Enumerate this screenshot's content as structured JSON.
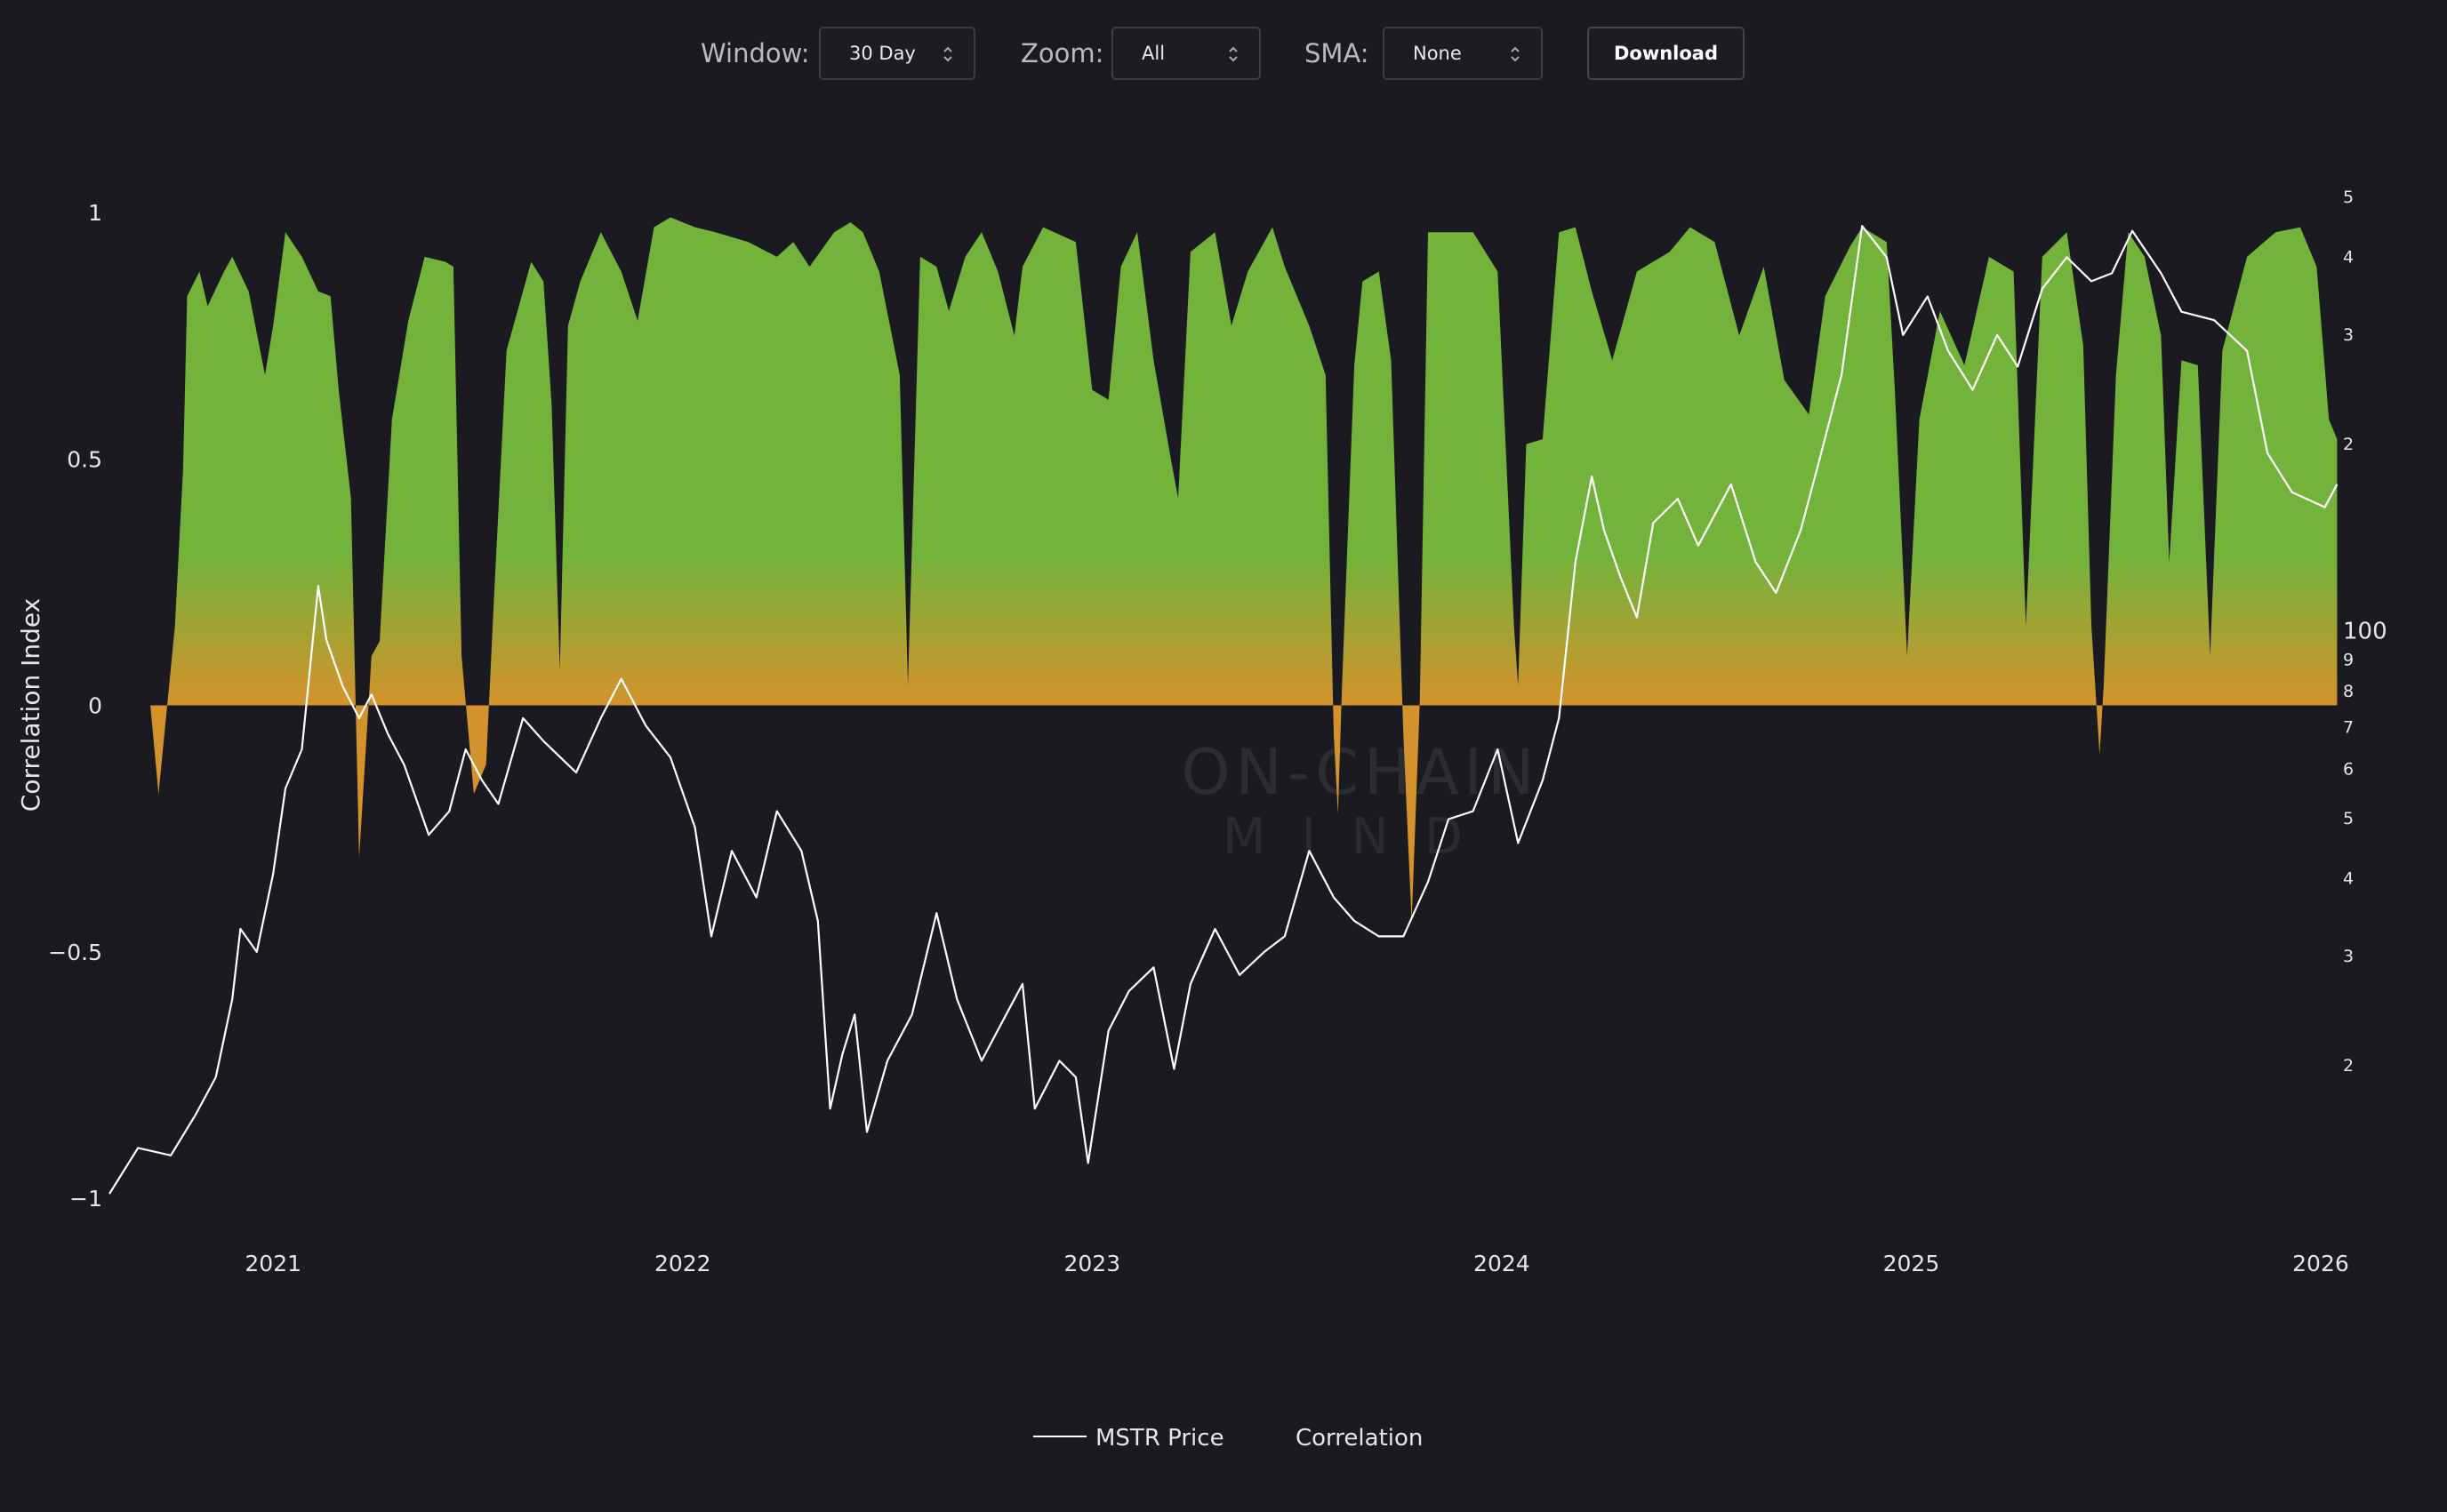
{
  "controls": [
    {
      "label": "Window:",
      "value": "30 Day"
    },
    {
      "label": "Zoom:",
      "value": "All"
    },
    {
      "label": "SMA:",
      "value": "None"
    }
  ],
  "download": "Download",
  "watermark": [
    "ON-CHAIN",
    "MIND"
  ],
  "chart_data": {
    "type": "line",
    "y_label": "Correlation Index",
    "xlim": [
      2020.6,
      2026.05
    ],
    "xticks": [
      2021,
      2022,
      2023,
      2024,
      2025,
      2026
    ],
    "ylim": [
      -1,
      1
    ],
    "yticks": [
      {
        "value": -1,
        "label": "−1"
      },
      {
        "value": -0.5,
        "label": "−0.5"
      },
      0,
      0.5,
      1
    ],
    "y2scale": "log",
    "y2lim": [
      12.2,
      471
    ],
    "y2ticks": [
      {
        "value": 20,
        "label": "2"
      },
      {
        "value": 30,
        "label": "3"
      },
      {
        "value": 40,
        "label": "4"
      },
      {
        "value": 50,
        "label": "5"
      },
      {
        "value": 60,
        "label": "6"
      },
      {
        "value": 70,
        "label": "7"
      },
      {
        "value": 80,
        "label": "8"
      },
      {
        "value": 90,
        "label": "9"
      },
      100,
      {
        "value": 200,
        "label": "2"
      },
      {
        "value": 300,
        "label": "3"
      },
      {
        "value": 400,
        "label": "4"
      },
      {
        "value": 500,
        "label": "5"
      }
    ],
    "series": [
      {
        "name": "MSTR Price",
        "color": "#ffffff",
        "axis": "y2",
        "x": [
          2020.6,
          2020.67,
          2020.75,
          2020.81,
          2020.86,
          2020.9,
          2020.92,
          2020.96,
          2021.0,
          2021.03,
          2021.07,
          2021.11,
          2021.13,
          2021.17,
          2021.21,
          2021.24,
          2021.28,
          2021.32,
          2021.38,
          2021.43,
          2021.47,
          2021.51,
          2021.55,
          2021.61,
          2021.66,
          2021.74,
          2021.8,
          2021.85,
          2021.91,
          2021.97,
          2022.03,
          2022.07,
          2022.12,
          2022.18,
          2022.23,
          2022.29,
          2022.33,
          2022.36,
          2022.39,
          2022.42,
          2022.45,
          2022.5,
          2022.56,
          2022.62,
          2022.67,
          2022.73,
          2022.79,
          2022.83,
          2022.86,
          2022.92,
          2022.96,
          2022.99,
          2023.04,
          2023.09,
          2023.15,
          2023.2,
          2023.24,
          2023.3,
          2023.36,
          2023.42,
          2023.47,
          2023.53,
          2023.59,
          2023.64,
          2023.7,
          2023.76,
          2023.82,
          2023.87,
          2023.93,
          2023.99,
          2024.04,
          2024.1,
          2024.14,
          2024.18,
          2024.22,
          2024.25,
          2024.29,
          2024.33,
          2024.37,
          2024.43,
          2024.48,
          2024.56,
          2024.62,
          2024.67,
          2024.73,
          2024.77,
          2024.83,
          2024.88,
          2024.94,
          2024.98,
          2025.04,
          2025.09,
          2025.15,
          2025.21,
          2025.26,
          2025.32,
          2025.38,
          2025.44,
          2025.49,
          2025.54,
          2025.61,
          2025.66,
          2025.74,
          2025.82,
          2025.87,
          2025.93,
          2026.01,
          2026.04
        ],
        "values": [
          12.4,
          14.7,
          14.3,
          16.6,
          19.1,
          25.5,
          33.1,
          30.4,
          40.6,
          55.7,
          64.4,
          118,
          96.6,
          81.3,
          72.3,
          78.9,
          68.2,
          60.8,
          46.9,
          51.2,
          64.4,
          57.4,
          52.6,
          72.3,
          66.4,
          59.1,
          72.3,
          83.6,
          70.3,
          62.5,
          48.2,
          32.2,
          44.2,
          37.2,
          51.2,
          44.2,
          34.1,
          17,
          20.8,
          24.1,
          15.6,
          20.3,
          24.1,
          35.1,
          25.5,
          20.3,
          24.1,
          27,
          17,
          20.3,
          19.1,
          13.9,
          22.7,
          26.3,
          28.7,
          19.7,
          27,
          33.1,
          27.9,
          30.4,
          32.2,
          44.2,
          37.2,
          34.1,
          32.2,
          32.2,
          39.4,
          49.7,
          51.2,
          64.4,
          45.5,
          57.4,
          72.3,
          129,
          177,
          145,
          122,
          105,
          149,
          163,
          137,
          172,
          129,
          115,
          145,
          182,
          258,
          448,
          399,
          299,
          345,
          282,
          244,
          299,
          266,
          355,
          399,
          365,
          376,
          440,
          376,
          326,
          316,
          282,
          193,
          167,
          158,
          172
        ]
      },
      {
        "name": "Correlation",
        "type": "area",
        "color": "#74b33b",
        "negative_color": "#d4922c",
        "x": [
          2020.7,
          2020.72,
          2020.74,
          2020.76,
          2020.78,
          2020.79,
          2020.82,
          2020.84,
          2020.88,
          2020.9,
          2020.94,
          2020.98,
          2021.0,
          2021.03,
          2021.07,
          2021.11,
          2021.14,
          2021.16,
          2021.19,
          2021.21,
          2021.24,
          2021.26,
          2021.29,
          2021.33,
          2021.37,
          2021.42,
          2021.44,
          2021.46,
          2021.49,
          2021.52,
          2021.54,
          2021.57,
          2021.63,
          2021.66,
          2021.68,
          2021.7,
          2021.72,
          2021.75,
          2021.8,
          2021.85,
          2021.89,
          2021.93,
          2021.97,
          2022.03,
          2022.08,
          2022.16,
          2022.23,
          2022.27,
          2022.31,
          2022.37,
          2022.41,
          2022.44,
          2022.48,
          2022.53,
          2022.55,
          2022.58,
          2022.62,
          2022.65,
          2022.69,
          2022.73,
          2022.77,
          2022.81,
          2022.83,
          2022.88,
          2022.96,
          2023.0,
          2023.04,
          2023.07,
          2023.11,
          2023.15,
          2023.19,
          2023.21,
          2023.24,
          2023.3,
          2023.34,
          2023.38,
          2023.44,
          2023.47,
          2023.53,
          2023.57,
          2023.59,
          2023.6,
          2023.61,
          2023.64,
          2023.66,
          2023.7,
          2023.73,
          2023.76,
          2023.78,
          2023.8,
          2023.82,
          2023.87,
          2023.93,
          2023.99,
          2024.03,
          2024.04,
          2024.06,
          2024.1,
          2024.14,
          2024.18,
          2024.22,
          2024.27,
          2024.33,
          2024.41,
          2024.46,
          2024.52,
          2024.58,
          2024.64,
          2024.69,
          2024.75,
          2024.79,
          2024.85,
          2024.88,
          2024.94,
          2024.96,
          2024.99,
          2025.02,
          2025.07,
          2025.13,
          2025.19,
          2025.25,
          2025.28,
          2025.32,
          2025.38,
          2025.42,
          2025.44,
          2025.46,
          2025.47,
          2025.5,
          2025.53,
          2025.57,
          2025.61,
          2025.63,
          2025.66,
          2025.7,
          2025.73,
          2025.76,
          2025.82,
          2025.89,
          2025.95,
          2025.99,
          2026.02,
          2026.04
        ],
        "values": [
          0,
          -0.18,
          -0.01,
          0.16,
          0.48,
          0.83,
          0.88,
          0.81,
          0.88,
          0.91,
          0.84,
          0.67,
          0.77,
          0.96,
          0.91,
          0.84,
          0.83,
          0.64,
          0.42,
          -0.31,
          0.1,
          0.13,
          0.58,
          0.78,
          0.91,
          0.9,
          0.89,
          0.1,
          -0.18,
          -0.12,
          0.23,
          0.72,
          0.9,
          0.86,
          0.61,
          0.07,
          0.77,
          0.86,
          0.96,
          0.88,
          0.78,
          0.97,
          0.99,
          0.97,
          0.96,
          0.94,
          0.91,
          0.94,
          0.89,
          0.96,
          0.98,
          0.96,
          0.88,
          0.67,
          0.04,
          0.91,
          0.89,
          0.8,
          0.91,
          0.96,
          0.88,
          0.75,
          0.89,
          0.97,
          0.94,
          0.64,
          0.62,
          0.89,
          0.96,
          0.7,
          0.51,
          0.42,
          0.92,
          0.96,
          0.77,
          0.88,
          0.97,
          0.89,
          0.77,
          0.67,
          -0.06,
          -0.22,
          0.04,
          0.69,
          0.86,
          0.88,
          0.7,
          -0.06,
          -0.44,
          0.01,
          0.96,
          0.96,
          0.96,
          0.88,
          0.16,
          0.04,
          0.53,
          0.54,
          0.96,
          0.97,
          0.84,
          0.7,
          0.88,
          0.92,
          0.97,
          0.94,
          0.75,
          0.89,
          0.66,
          0.59,
          0.83,
          0.93,
          0.97,
          0.94,
          0.64,
          0.1,
          0.58,
          0.8,
          0.69,
          0.91,
          0.88,
          0.16,
          0.91,
          0.96,
          0.73,
          0.16,
          -0.1,
          0.04,
          0.67,
          0.96,
          0.91,
          0.75,
          0.29,
          0.7,
          0.69,
          0.1,
          0.72,
          0.91,
          0.96,
          0.97,
          0.89,
          0.58,
          0.54
        ]
      }
    ]
  }
}
